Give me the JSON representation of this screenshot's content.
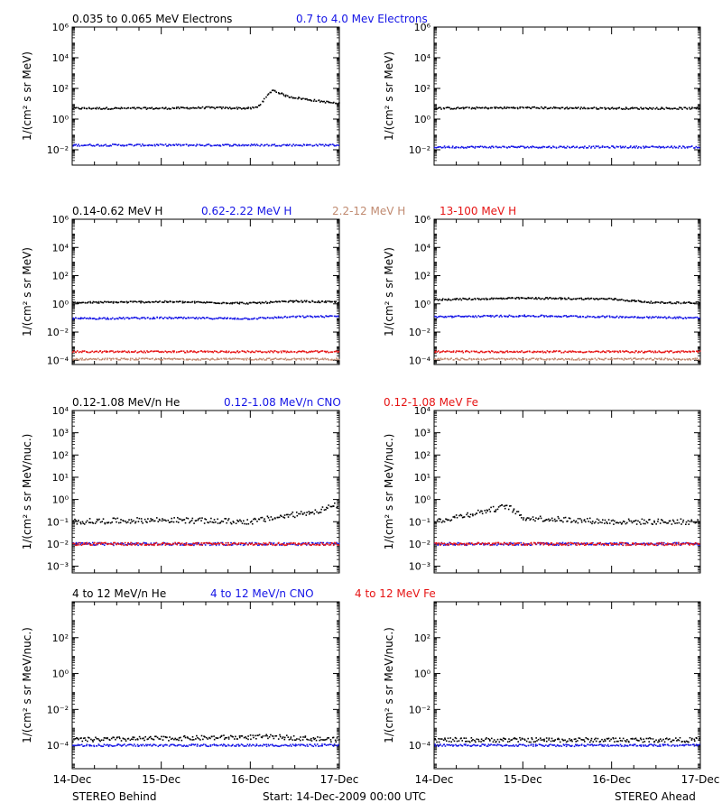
{
  "colors": {
    "black": "#000000",
    "blue": "#1414e6",
    "brown": "#c08a70",
    "red": "#e61414",
    "frame": "#000000"
  },
  "footer": {
    "left": "STEREO Behind",
    "center": "Start: 14-Dec-2009 00:00 UTC",
    "right": "STEREO Ahead"
  },
  "chart_data": [
    {
      "type": "scatter",
      "panel": "electrons-behind",
      "ylabel": "1/(cm² s sr MeV)",
      "yscale": "log",
      "ylim": [
        0.001,
        1000000
      ],
      "yticks": [
        {
          "value": 0.01,
          "label": "10⁻²"
        },
        {
          "value": 1,
          "label": "10⁰"
        },
        {
          "value": 100,
          "label": "10²"
        },
        {
          "value": 10000,
          "label": "10⁴"
        },
        {
          "value": 1000000,
          "label": "10⁶"
        }
      ],
      "xlim": [
        "2009-12-14",
        "2009-12-17"
      ],
      "xticks": [
        "14-Dec",
        "15-Dec",
        "16-Dec",
        "17-Dec"
      ],
      "legend": [
        {
          "text": "0.035 to 0.065 MeV Electrons",
          "color": "black"
        },
        {
          "text": "0.7 to 4.0 Mev Electrons",
          "color": "blue"
        }
      ],
      "series": [
        {
          "name": "0.035 to 0.065 MeV Electrons",
          "color": "black",
          "x": [
            "2009-12-14",
            "2009-12-14T12:00",
            "2009-12-15",
            "2009-12-15T12:00",
            "2009-12-16",
            "2009-12-16T02:00",
            "2009-12-16T06:00",
            "2009-12-16T10:00",
            "2009-12-16T16:00",
            "2009-12-17"
          ],
          "y": [
            5,
            5,
            5,
            5.5,
            5,
            6,
            80,
            30,
            18,
            10
          ]
        },
        {
          "name": "0.7 to 4.0 Mev Electrons",
          "color": "blue",
          "x": [
            "2009-12-14",
            "2009-12-15",
            "2009-12-16",
            "2009-12-17"
          ],
          "y": [
            0.02,
            0.02,
            0.02,
            0.02
          ]
        }
      ]
    },
    {
      "type": "scatter",
      "panel": "electrons-ahead",
      "ylabel": "1/(cm² s sr MeV)",
      "yscale": "log",
      "ylim": [
        0.001,
        1000000
      ],
      "yticks": [
        {
          "value": 0.01,
          "label": "10⁻²"
        },
        {
          "value": 1,
          "label": "10⁰"
        },
        {
          "value": 100,
          "label": "10²"
        },
        {
          "value": 10000,
          "label": "10⁴"
        },
        {
          "value": 1000000,
          "label": "10⁶"
        }
      ],
      "xlim": [
        "2009-12-14",
        "2009-12-17"
      ],
      "xticks": [
        "14-Dec",
        "15-Dec",
        "16-Dec",
        "17-Dec"
      ],
      "legend": [],
      "series": [
        {
          "name": "0.035 to 0.065 MeV Electrons",
          "color": "black",
          "x": [
            "2009-12-14",
            "2009-12-15",
            "2009-12-16",
            "2009-12-17"
          ],
          "y": [
            5,
            5.5,
            5,
            5
          ]
        },
        {
          "name": "0.7 to 4.0 Mev Electrons",
          "color": "blue",
          "x": [
            "2009-12-14",
            "2009-12-15",
            "2009-12-16",
            "2009-12-17"
          ],
          "y": [
            0.015,
            0.015,
            0.015,
            0.015
          ]
        }
      ]
    },
    {
      "type": "scatter",
      "panel": "protons-behind",
      "ylabel": "1/(cm² s sr MeV)",
      "yscale": "log",
      "ylim": [
        5e-05,
        1000000
      ],
      "yticks": [
        {
          "value": 0.0001,
          "label": "10⁻⁴"
        },
        {
          "value": 0.01,
          "label": "10⁻²"
        },
        {
          "value": 1,
          "label": "10⁰"
        },
        {
          "value": 100,
          "label": "10²"
        },
        {
          "value": 10000,
          "label": "10⁴"
        },
        {
          "value": 1000000,
          "label": "10⁶"
        }
      ],
      "xlim": [
        "2009-12-14",
        "2009-12-17"
      ],
      "xticks": [
        "14-Dec",
        "15-Dec",
        "16-Dec",
        "17-Dec"
      ],
      "legend": [
        {
          "text": "0.14-0.62 MeV H",
          "color": "black"
        },
        {
          "text": "0.62-2.22 MeV H",
          "color": "blue"
        },
        {
          "text": "2.2-12 MeV H",
          "color": "brown"
        },
        {
          "text": "13-100 MeV H",
          "color": "red"
        }
      ],
      "series": [
        {
          "name": "0.14-0.62 MeV H",
          "color": "black",
          "x": [
            "2009-12-14",
            "2009-12-15",
            "2009-12-16",
            "2009-12-16T12:00",
            "2009-12-17"
          ],
          "y": [
            1.2,
            1.4,
            1.1,
            1.5,
            1.3
          ]
        },
        {
          "name": "0.62-2.22 MeV H",
          "color": "blue",
          "x": [
            "2009-12-14",
            "2009-12-15",
            "2009-12-16",
            "2009-12-16T12:00",
            "2009-12-17"
          ],
          "y": [
            0.09,
            0.1,
            0.09,
            0.12,
            0.13
          ]
        },
        {
          "name": "2.2-12 MeV H",
          "color": "brown",
          "x": [
            "2009-12-14",
            "2009-12-17"
          ],
          "y": [
            0.00012,
            0.00012
          ]
        },
        {
          "name": "13-100 MeV H",
          "color": "red",
          "x": [
            "2009-12-14",
            "2009-12-17"
          ],
          "y": [
            0.0004,
            0.0004
          ]
        }
      ]
    },
    {
      "type": "scatter",
      "panel": "protons-ahead",
      "ylabel": "1/(cm² s sr MeV)",
      "yscale": "log",
      "ylim": [
        5e-05,
        1000000
      ],
      "yticks": [
        {
          "value": 0.0001,
          "label": "10⁻⁴"
        },
        {
          "value": 0.01,
          "label": "10⁻²"
        },
        {
          "value": 1,
          "label": "10⁰"
        },
        {
          "value": 100,
          "label": "10²"
        },
        {
          "value": 10000,
          "label": "10⁴"
        },
        {
          "value": 1000000,
          "label": "10⁶"
        }
      ],
      "xlim": [
        "2009-12-14",
        "2009-12-17"
      ],
      "xticks": [
        "14-Dec",
        "15-Dec",
        "16-Dec",
        "17-Dec"
      ],
      "legend": [],
      "series": [
        {
          "name": "0.14-0.62 MeV H",
          "color": "black",
          "x": [
            "2009-12-14",
            "2009-12-15",
            "2009-12-16",
            "2009-12-16T12:00",
            "2009-12-17"
          ],
          "y": [
            2,
            2.5,
            2.2,
            1.2,
            1.2
          ]
        },
        {
          "name": "0.62-2.22 MeV H",
          "color": "blue",
          "x": [
            "2009-12-14",
            "2009-12-15",
            "2009-12-16",
            "2009-12-17"
          ],
          "y": [
            0.12,
            0.14,
            0.12,
            0.1
          ]
        },
        {
          "name": "2.2-12 MeV H",
          "color": "brown",
          "x": [
            "2009-12-14",
            "2009-12-17"
          ],
          "y": [
            0.00012,
            0.00012
          ]
        },
        {
          "name": "13-100 MeV H",
          "color": "red",
          "x": [
            "2009-12-14",
            "2009-12-17"
          ],
          "y": [
            0.0004,
            0.0004
          ]
        }
      ]
    },
    {
      "type": "scatter",
      "panel": "heavy-low-behind",
      "ylabel": "1/(cm² s sr MeV/nuc.)",
      "yscale": "log",
      "ylim": [
        0.0005,
        10000
      ],
      "yticks": [
        {
          "value": 0.001,
          "label": "10⁻³"
        },
        {
          "value": 0.01,
          "label": "10⁻²"
        },
        {
          "value": 0.1,
          "label": "10⁻¹"
        },
        {
          "value": 1,
          "label": "10⁰"
        },
        {
          "value": 10,
          "label": "10¹"
        },
        {
          "value": 100,
          "label": "10²"
        },
        {
          "value": 1000,
          "label": "10³"
        },
        {
          "value": 10000,
          "label": "10⁴"
        }
      ],
      "xlim": [
        "2009-12-14",
        "2009-12-17"
      ],
      "xticks": [
        "14-Dec",
        "15-Dec",
        "16-Dec",
        "17-Dec"
      ],
      "legend": [
        {
          "text": "0.12-1.08 MeV/n He",
          "color": "black"
        },
        {
          "text": "0.12-1.08 MeV/n CNO",
          "color": "blue"
        },
        {
          "text": "0.12-1.08 MeV Fe",
          "color": "red"
        }
      ],
      "series": [
        {
          "name": "0.12-1.08 MeV/n He",
          "color": "black",
          "x": [
            "2009-12-14",
            "2009-12-15",
            "2009-12-16",
            "2009-12-16T18:00",
            "2009-12-17"
          ],
          "y": [
            0.1,
            0.12,
            0.1,
            0.3,
            0.6
          ]
        },
        {
          "name": "0.12-1.08 MeV/n CNO",
          "color": "blue",
          "x": [
            "2009-12-14",
            "2009-12-17"
          ],
          "y": [
            0.01,
            0.01
          ]
        },
        {
          "name": "0.12-1.08 MeV Fe",
          "color": "red",
          "x": [
            "2009-12-14",
            "2009-12-17"
          ],
          "y": [
            0.01,
            0.01
          ]
        }
      ]
    },
    {
      "type": "scatter",
      "panel": "heavy-low-ahead",
      "ylabel": "1/(cm² s sr MeV/nuc.)",
      "yscale": "log",
      "ylim": [
        0.0005,
        10000
      ],
      "yticks": [
        {
          "value": 0.001,
          "label": "10⁻³"
        },
        {
          "value": 0.01,
          "label": "10⁻²"
        },
        {
          "value": 0.1,
          "label": "10⁻¹"
        },
        {
          "value": 1,
          "label": "10⁰"
        },
        {
          "value": 10,
          "label": "10¹"
        },
        {
          "value": 100,
          "label": "10²"
        },
        {
          "value": 1000,
          "label": "10³"
        },
        {
          "value": 10000,
          "label": "10⁴"
        }
      ],
      "xlim": [
        "2009-12-14",
        "2009-12-17"
      ],
      "xticks": [
        "14-Dec",
        "15-Dec",
        "16-Dec",
        "17-Dec"
      ],
      "legend": [],
      "series": [
        {
          "name": "0.12-1.08 MeV/n He",
          "color": "black",
          "x": [
            "2009-12-14",
            "2009-12-14T20:00",
            "2009-12-15",
            "2009-12-16",
            "2009-12-17"
          ],
          "y": [
            0.1,
            0.5,
            0.15,
            0.1,
            0.1
          ]
        },
        {
          "name": "0.12-1.08 MeV/n CNO",
          "color": "blue",
          "x": [
            "2009-12-14",
            "2009-12-17"
          ],
          "y": [
            0.01,
            0.01
          ]
        },
        {
          "name": "0.12-1.08 MeV Fe",
          "color": "red",
          "x": [
            "2009-12-14",
            "2009-12-17"
          ],
          "y": [
            0.01,
            0.01
          ]
        }
      ]
    },
    {
      "type": "scatter",
      "panel": "heavy-high-behind",
      "ylabel": "1/(cm² s sr MeV/nuc.)",
      "yscale": "log",
      "ylim": [
        5e-06,
        10000
      ],
      "yticks": [
        {
          "value": 0.0001,
          "label": "10⁻⁴"
        },
        {
          "value": 0.01,
          "label": "10⁻²"
        },
        {
          "value": 1,
          "label": "10⁰"
        },
        {
          "value": 100,
          "label": "10²"
        }
      ],
      "xlim": [
        "2009-12-14",
        "2009-12-17"
      ],
      "xticks": [
        "14-Dec",
        "15-Dec",
        "16-Dec",
        "17-Dec"
      ],
      "legend": [
        {
          "text": "4 to 12 MeV/n He",
          "color": "black"
        },
        {
          "text": "4 to 12 MeV/n CNO",
          "color": "blue"
        },
        {
          "text": "4 to 12 MeV Fe",
          "color": "red"
        }
      ],
      "series": [
        {
          "name": "4 to 12 MeV/n He",
          "color": "black",
          "x": [
            "2009-12-14",
            "2009-12-16T06:00",
            "2009-12-17"
          ],
          "y": [
            0.0002,
            0.0003,
            0.0002
          ]
        },
        {
          "name": "4 to 12 MeV/n CNO",
          "color": "blue",
          "x": [
            "2009-12-14",
            "2009-12-17"
          ],
          "y": [
            0.0001,
            0.0001
          ]
        }
      ]
    },
    {
      "type": "scatter",
      "panel": "heavy-high-ahead",
      "ylabel": "1/(cm² s sr MeV/nuc.)",
      "yscale": "log",
      "ylim": [
        5e-06,
        10000
      ],
      "yticks": [
        {
          "value": 0.0001,
          "label": "10⁻⁴"
        },
        {
          "value": 0.01,
          "label": "10⁻²"
        },
        {
          "value": 1,
          "label": "10⁰"
        },
        {
          "value": 100,
          "label": "10²"
        }
      ],
      "xlim": [
        "2009-12-14",
        "2009-12-17"
      ],
      "xticks": [
        "14-Dec",
        "15-Dec",
        "16-Dec",
        "17-Dec"
      ],
      "legend": [],
      "series": [
        {
          "name": "4 to 12 MeV/n He",
          "color": "black",
          "x": [
            "2009-12-14",
            "2009-12-17"
          ],
          "y": [
            0.0002,
            0.0002
          ]
        },
        {
          "name": "4 to 12 MeV/n CNO",
          "color": "blue",
          "x": [
            "2009-12-14",
            "2009-12-17"
          ],
          "y": [
            0.0001,
            0.0001
          ]
        }
      ]
    }
  ]
}
